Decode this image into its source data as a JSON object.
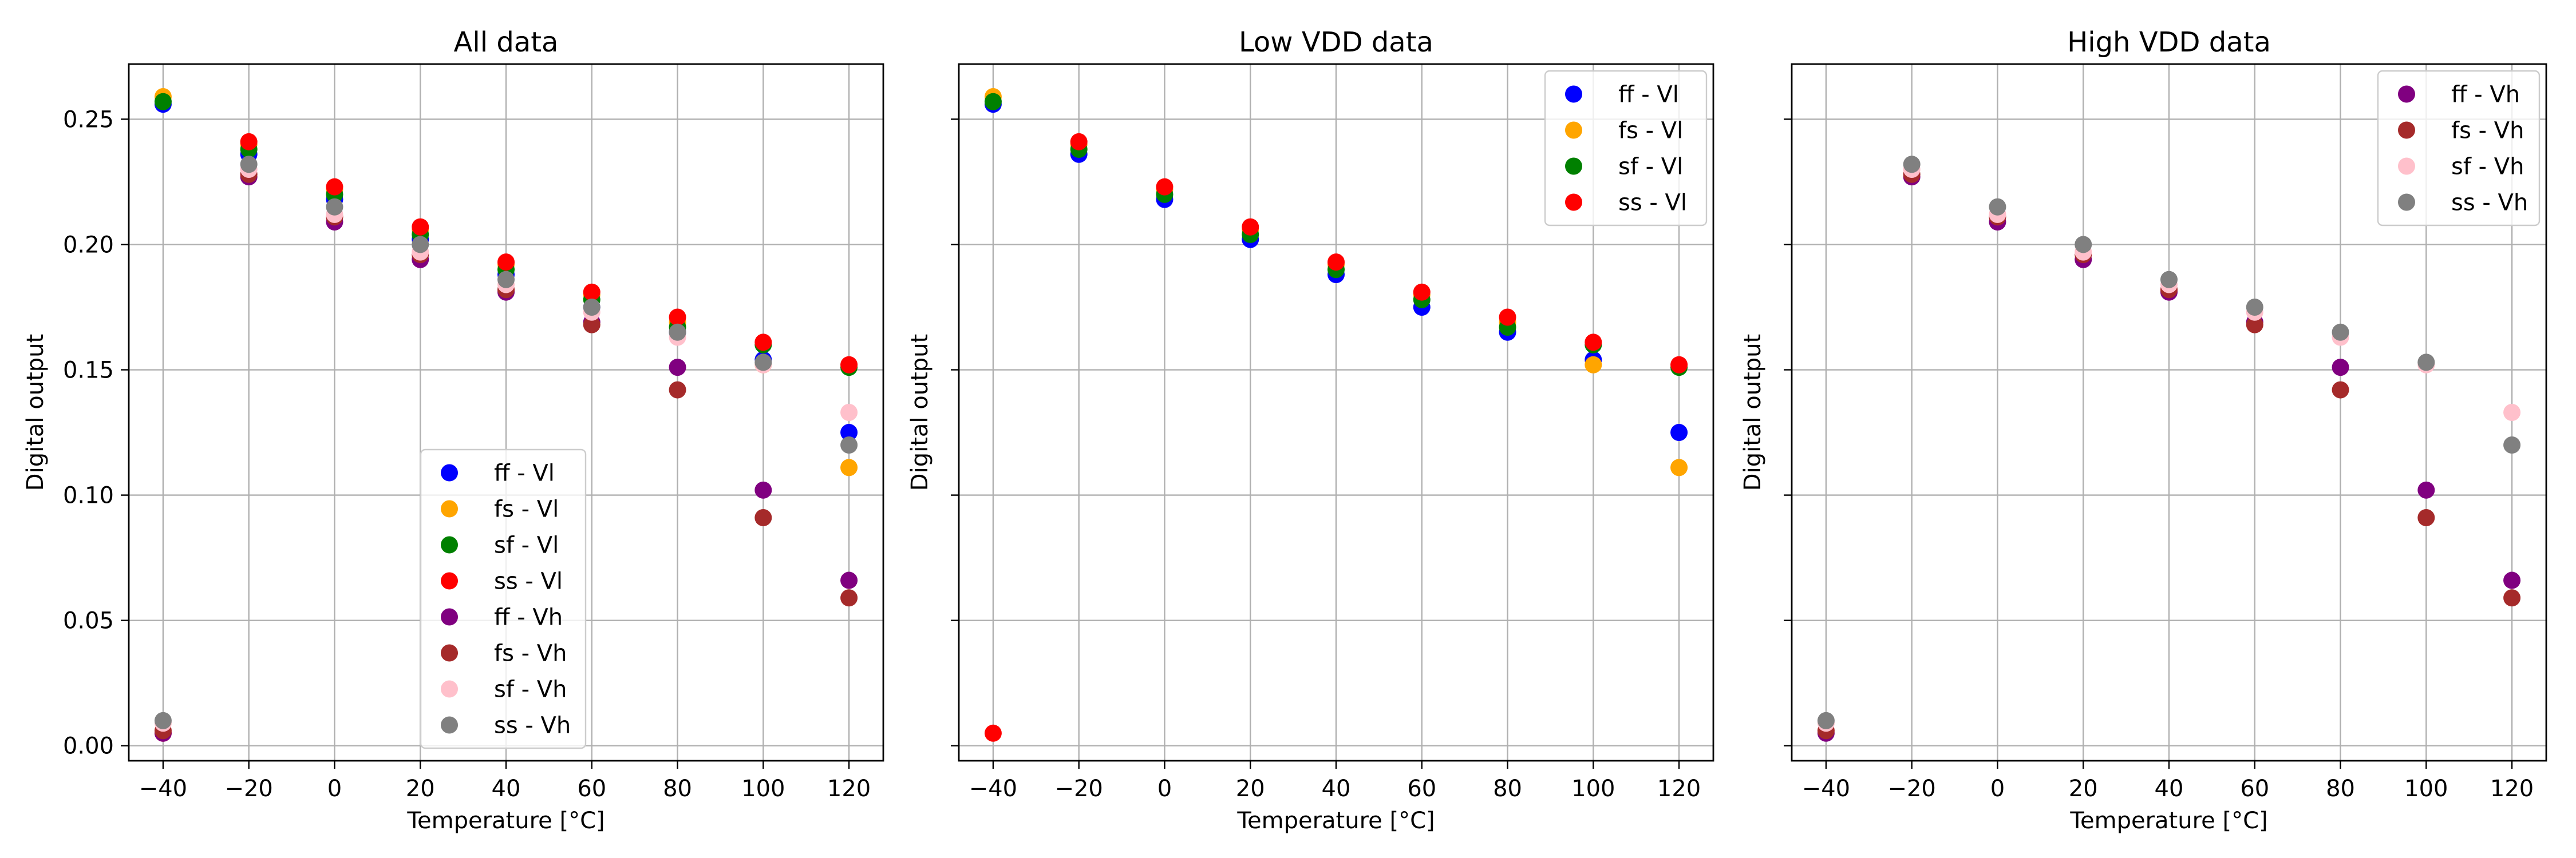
{
  "chart_data": [
    {
      "type": "scatter",
      "title": "All data",
      "xlabel": "Temperature [°C]",
      "ylabel": "Digital output",
      "xlim": [
        -48,
        128
      ],
      "ylim": [
        -0.006,
        0.272
      ],
      "xticks": [
        -40,
        -20,
        0,
        20,
        40,
        60,
        80,
        100,
        120
      ],
      "xtick_labels": [
        "−40",
        "−20",
        "0",
        "20",
        "40",
        "60",
        "80",
        "100",
        "120"
      ],
      "yticks": [
        0.0,
        0.05,
        0.1,
        0.15,
        0.2,
        0.25
      ],
      "ytick_labels": [
        "0.00",
        "0.05",
        "0.10",
        "0.15",
        "0.20",
        "0.25"
      ],
      "show_y_ticklabels": true,
      "grid": true,
      "legend_position": "lower-center",
      "x": [
        -40,
        -20,
        0,
        20,
        40,
        60,
        80,
        100,
        120
      ],
      "series": [
        {
          "name": "ff - Vl",
          "color": "#0000ff",
          "values": [
            0.256,
            0.236,
            0.218,
            0.202,
            0.188,
            0.175,
            0.165,
            0.154,
            0.125
          ]
        },
        {
          "name": "fs - Vl",
          "color": "#ffa500",
          "values": [
            0.259,
            0.24,
            0.222,
            0.206,
            0.192,
            0.18,
            0.169,
            0.152,
            0.111
          ]
        },
        {
          "name": "sf - Vl",
          "color": "#008000",
          "values": [
            0.257,
            0.238,
            0.22,
            0.204,
            0.19,
            0.178,
            0.167,
            0.16,
            0.151
          ]
        },
        {
          "name": "ss - Vl",
          "color": "#ff0000",
          "values": [
            0.005,
            0.241,
            0.223,
            0.207,
            0.193,
            0.181,
            0.171,
            0.161,
            0.152
          ]
        },
        {
          "name": "ff - Vh",
          "color": "#800080",
          "values": [
            0.005,
            0.227,
            0.209,
            0.194,
            0.181,
            0.169,
            0.151,
            0.102,
            0.066
          ]
        },
        {
          "name": "fs - Vh",
          "color": "#a52a2a",
          "values": [
            0.006,
            0.228,
            0.211,
            0.196,
            0.182,
            0.168,
            0.142,
            0.091,
            0.059
          ]
        },
        {
          "name": "sf - Vh",
          "color": "#ffc0cb",
          "values": [
            0.009,
            0.23,
            0.212,
            0.197,
            0.184,
            0.173,
            0.163,
            0.152,
            0.133
          ]
        },
        {
          "name": "ss - Vh",
          "color": "#808080",
          "values": [
            0.01,
            0.232,
            0.215,
            0.2,
            0.186,
            0.175,
            0.165,
            0.153,
            0.12
          ]
        }
      ]
    },
    {
      "type": "scatter",
      "title": "Low VDD data",
      "xlabel": "Temperature [°C]",
      "ylabel": "Digital output",
      "xlim": [
        -48,
        128
      ],
      "ylim": [
        -0.006,
        0.272
      ],
      "xticks": [
        -40,
        -20,
        0,
        20,
        40,
        60,
        80,
        100,
        120
      ],
      "xtick_labels": [
        "−40",
        "−20",
        "0",
        "20",
        "40",
        "60",
        "80",
        "100",
        "120"
      ],
      "yticks": [
        0.0,
        0.05,
        0.1,
        0.15,
        0.2,
        0.25
      ],
      "ytick_labels": [
        "",
        "",
        "",
        "",
        "",
        ""
      ],
      "show_y_ticklabels": false,
      "grid": true,
      "legend_position": "top-right",
      "x": [
        -40,
        -20,
        0,
        20,
        40,
        60,
        80,
        100,
        120
      ],
      "series": [
        {
          "name": "ff - Vl",
          "color": "#0000ff",
          "values": [
            0.256,
            0.236,
            0.218,
            0.202,
            0.188,
            0.175,
            0.165,
            0.154,
            0.125
          ]
        },
        {
          "name": "fs - Vl",
          "color": "#ffa500",
          "values": [
            0.259,
            0.24,
            0.222,
            0.206,
            0.192,
            0.18,
            0.169,
            0.152,
            0.111
          ]
        },
        {
          "name": "sf - Vl",
          "color": "#008000",
          "values": [
            0.257,
            0.238,
            0.22,
            0.204,
            0.19,
            0.178,
            0.167,
            0.16,
            0.151
          ]
        },
        {
          "name": "ss - Vl",
          "color": "#ff0000",
          "values": [
            0.005,
            0.241,
            0.223,
            0.207,
            0.193,
            0.181,
            0.171,
            0.161,
            0.152
          ]
        }
      ]
    },
    {
      "type": "scatter",
      "title": "High VDD data",
      "xlabel": "Temperature [°C]",
      "ylabel": "Digital output",
      "xlim": [
        -48,
        128
      ],
      "ylim": [
        -0.006,
        0.272
      ],
      "xticks": [
        -40,
        -20,
        0,
        20,
        40,
        60,
        80,
        100,
        120
      ],
      "xtick_labels": [
        "−40",
        "−20",
        "0",
        "20",
        "40",
        "60",
        "80",
        "100",
        "120"
      ],
      "yticks": [
        0.0,
        0.05,
        0.1,
        0.15,
        0.2,
        0.25
      ],
      "ytick_labels": [
        "",
        "",
        "",
        "",
        "",
        ""
      ],
      "show_y_ticklabels": false,
      "grid": true,
      "legend_position": "top-right",
      "x": [
        -40,
        -20,
        0,
        20,
        40,
        60,
        80,
        100,
        120
      ],
      "series": [
        {
          "name": "ff - Vh",
          "color": "#800080",
          "values": [
            0.005,
            0.227,
            0.209,
            0.194,
            0.181,
            0.169,
            0.151,
            0.102,
            0.066
          ]
        },
        {
          "name": "fs - Vh",
          "color": "#a52a2a",
          "values": [
            0.006,
            0.228,
            0.211,
            0.196,
            0.182,
            0.168,
            0.142,
            0.091,
            0.059
          ]
        },
        {
          "name": "sf - Vh",
          "color": "#ffc0cb",
          "values": [
            0.009,
            0.23,
            0.212,
            0.197,
            0.184,
            0.173,
            0.163,
            0.152,
            0.133
          ]
        },
        {
          "name": "ss - Vh",
          "color": "#808080",
          "values": [
            0.01,
            0.232,
            0.215,
            0.2,
            0.186,
            0.175,
            0.165,
            0.153,
            0.12
          ]
        }
      ]
    }
  ]
}
